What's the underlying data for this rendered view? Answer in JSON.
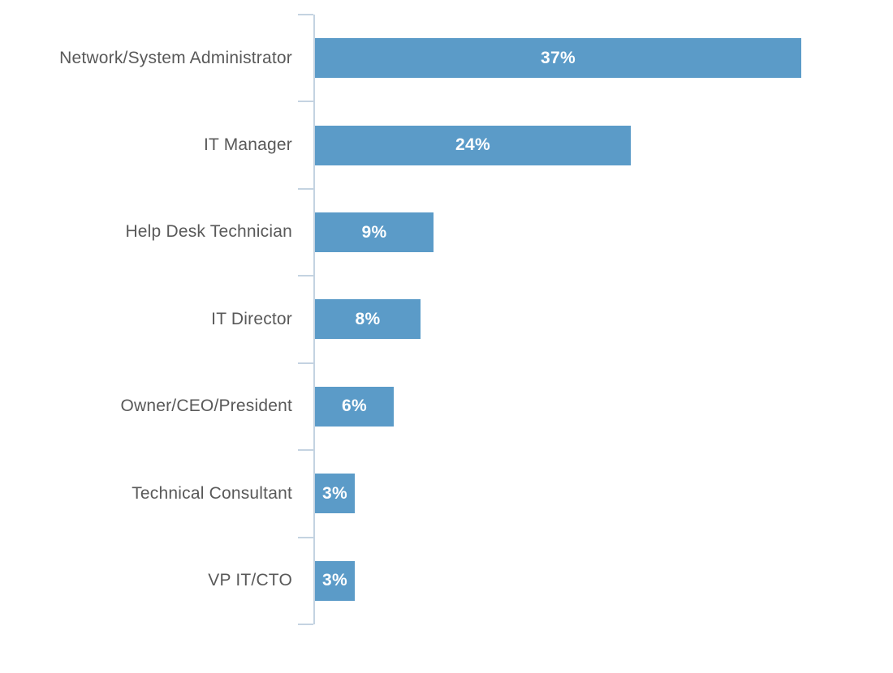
{
  "chart_data": {
    "type": "bar",
    "orientation": "horizontal",
    "title": "",
    "xlabel": "",
    "ylabel": "",
    "categories": [
      "Network/System Administrator",
      "IT Manager",
      "Help Desk Technician",
      "IT Director",
      "Owner/CEO/President",
      "Technical Consultant",
      "VP IT/CTO"
    ],
    "values": [
      37,
      24,
      9,
      8,
      6,
      3,
      3
    ],
    "value_labels": [
      "37%",
      "24%",
      "9%",
      "8%",
      "6%",
      "3%",
      "3%"
    ],
    "xlim": [
      0,
      44
    ],
    "grid": false,
    "legend": false,
    "colors": {
      "bar": "#5B9BC8",
      "value_label": "#FFFFFF",
      "category_label": "#595959",
      "axis": "#C4D3E1",
      "background": "#FFFFFF"
    }
  }
}
